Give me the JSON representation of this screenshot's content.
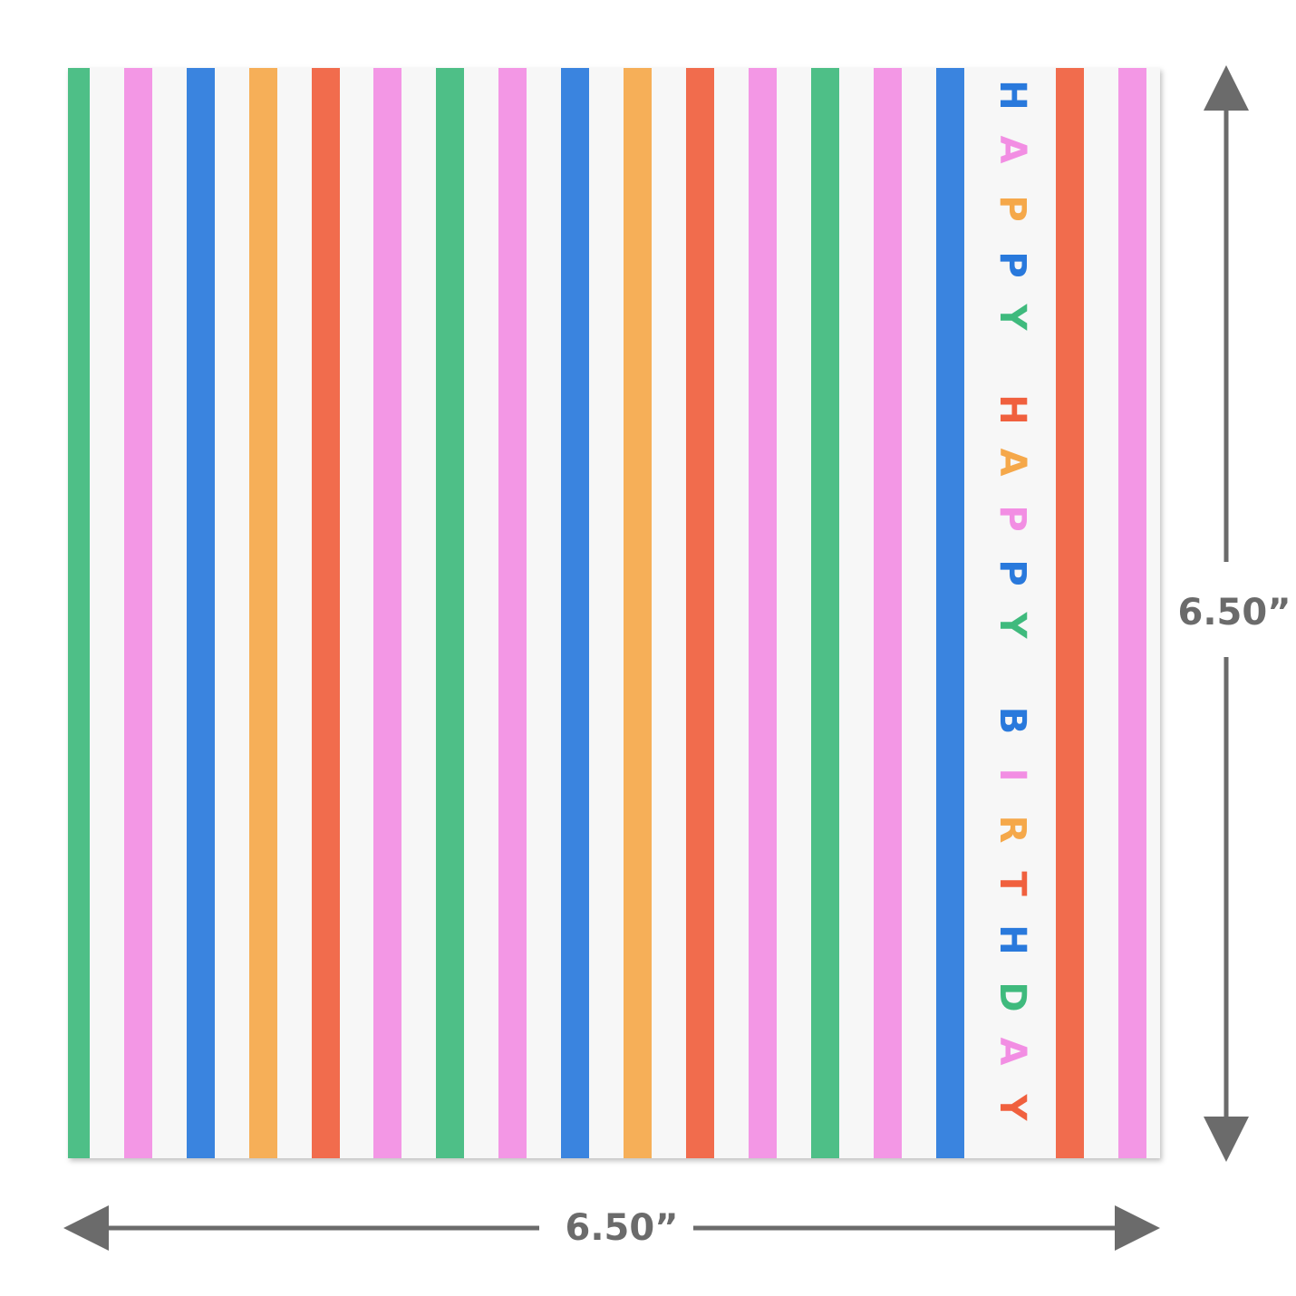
{
  "napkin": {
    "letters": [
      "H",
      "A",
      "P",
      "P",
      "Y",
      "H",
      "A",
      "P",
      "P",
      "Y",
      "B",
      "I",
      "R",
      "T",
      "H",
      "D",
      "A",
      "Y"
    ]
  },
  "dimensions": {
    "height": "6.50”",
    "width": "6.50”"
  }
}
